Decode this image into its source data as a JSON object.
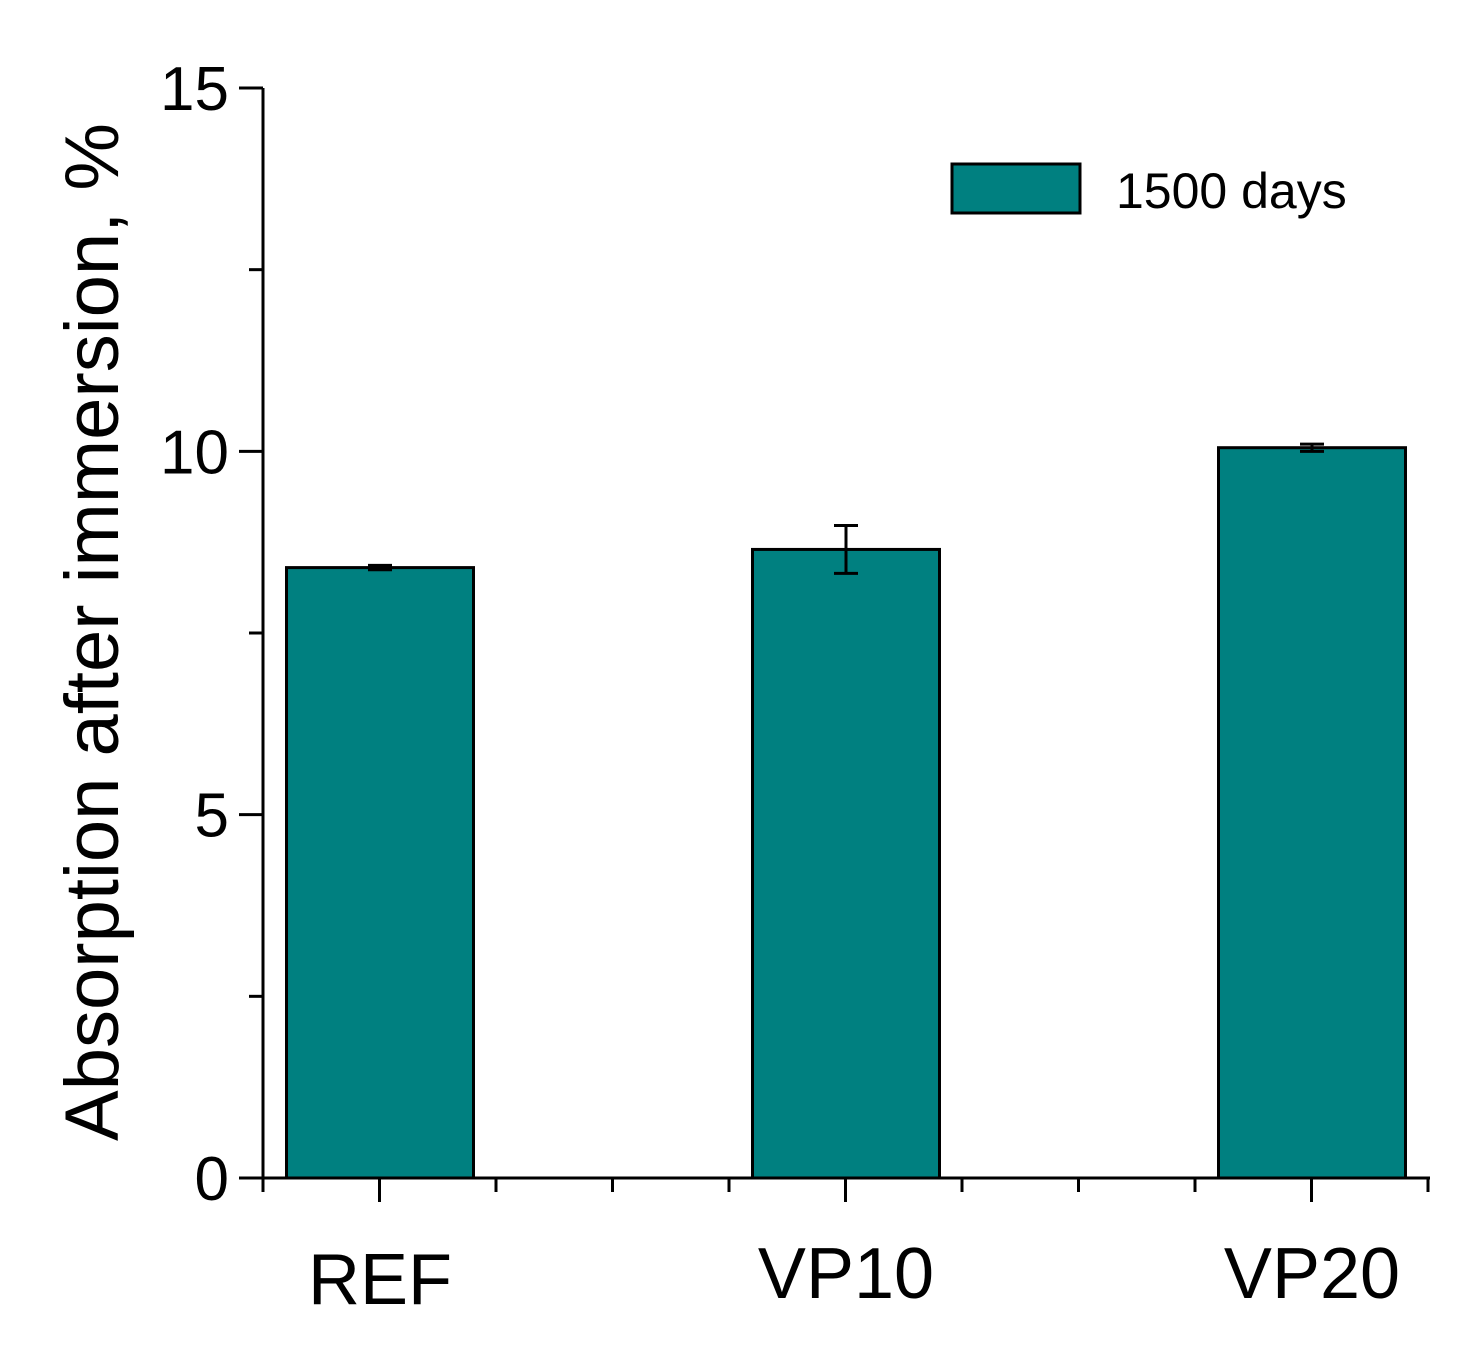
{
  "chart_data": {
    "type": "bar",
    "categories": [
      "REF",
      "VP10",
      "VP20"
    ],
    "series": [
      {
        "name": "1500 days",
        "values": [
          8.4,
          8.65,
          10.05
        ],
        "errors": [
          0.03,
          0.33,
          0.05
        ],
        "color": "#008080"
      }
    ],
    "ylabel": "Absorption after immersion, %",
    "xlabel": "",
    "ylim": [
      0,
      15
    ],
    "yticks": [
      0,
      5,
      10,
      15
    ],
    "y_minor_step": 2.5,
    "grid": false,
    "legend_position": "top-right"
  }
}
